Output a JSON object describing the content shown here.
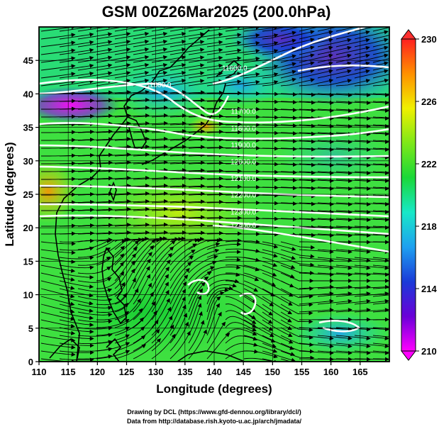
{
  "title": "GSM 00Z26Mar2025 (200.0hPa)",
  "x_axis": {
    "label": "Longitude (degrees)",
    "range": [
      110,
      170
    ],
    "ticks": [
      "110",
      "115",
      "120",
      "125",
      "130",
      "135",
      "140",
      "145",
      "150",
      "155",
      "160",
      "165"
    ],
    "tick_values": [
      110,
      115,
      120,
      125,
      130,
      135,
      140,
      145,
      150,
      155,
      160,
      165
    ]
  },
  "y_axis": {
    "label": "Latitude  (degrees)",
    "range": [
      0,
      50
    ],
    "ticks": [
      "0",
      "5",
      "10",
      "15",
      "20",
      "25",
      "30",
      "35",
      "40",
      "45"
    ],
    "tick_values": [
      0,
      5,
      10,
      15,
      20,
      25,
      30,
      35,
      40,
      45
    ]
  },
  "colorbar": {
    "range": [
      210,
      230
    ],
    "labels": [
      "230",
      "226",
      "222",
      "218",
      "214",
      "210"
    ],
    "label_values": [
      230,
      226,
      222,
      218,
      214,
      210
    ],
    "colors": [
      "#ff00ff",
      "#6a00d8",
      "#1a3ad8",
      "#1ea0f0",
      "#18e8c8",
      "#1ad838",
      "#7ee818",
      "#f0f000",
      "#ff9000",
      "#ff2020"
    ]
  },
  "contour_labels": [
    {
      "text": "11600.0",
      "lon": 130.5,
      "lat": 41.0
    },
    {
      "text": "11600.0",
      "lon": 143.5,
      "lat": 43.5
    },
    {
      "text": "11700.0",
      "lon": 145.0,
      "lat": 37.0
    },
    {
      "text": "11800.0",
      "lon": 145.0,
      "lat": 34.5
    },
    {
      "text": "11900.0",
      "lon": 145.0,
      "lat": 32.0
    },
    {
      "text": "12000.0",
      "lon": 145.0,
      "lat": 29.5
    },
    {
      "text": "12100.0",
      "lon": 145.0,
      "lat": 27.0
    },
    {
      "text": "12200.0",
      "lon": 145.0,
      "lat": 24.5
    },
    {
      "text": "12300.0",
      "lon": 145.0,
      "lat": 22.0
    },
    {
      "text": "12400.0",
      "lon": 145.0,
      "lat": 20.0
    }
  ],
  "credits": {
    "line1": "Drawing by DCL (https://www.gfd-dennou.org/library/dcl/)",
    "line2": "Data from http://database.rish.kyoto-u.ac.jp/arch/jmadata/"
  }
}
